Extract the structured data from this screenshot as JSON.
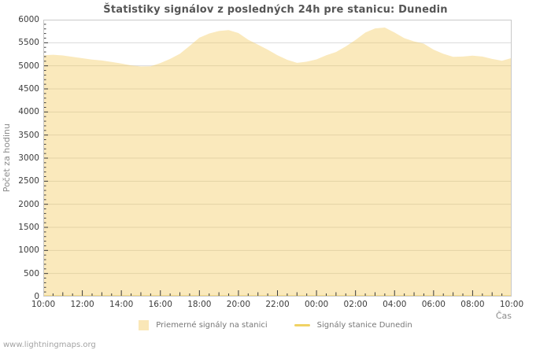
{
  "page": {
    "watermark": "www.lightningmaps.org"
  },
  "chart_data": {
    "type": "area",
    "title": "Štatistiky signálov z posledných 24h pre stanicu: Dunedin",
    "xlabel": "Čas",
    "ylabel": "Počet za hodinu",
    "ylim": [
      0,
      6000
    ],
    "y_tick_step": 500,
    "y_minor_tick_step": 100,
    "grid": true,
    "legend_position": "bottom",
    "x_tick_labels": [
      "10:00",
      "12:00",
      "14:00",
      "16:00",
      "18:00",
      "20:00",
      "22:00",
      "00:00",
      "02:00",
      "04:00",
      "06:00",
      "08:00",
      "10:00"
    ],
    "x": [
      "10:00",
      "10:30",
      "11:00",
      "11:30",
      "12:00",
      "12:30",
      "13:00",
      "13:30",
      "14:00",
      "14:30",
      "15:00",
      "15:30",
      "16:00",
      "16:30",
      "17:00",
      "17:30",
      "18:00",
      "18:30",
      "19:00",
      "19:30",
      "20:00",
      "20:30",
      "21:00",
      "21:30",
      "22:00",
      "22:30",
      "23:00",
      "23:30",
      "00:00",
      "00:30",
      "01:00",
      "01:30",
      "02:00",
      "02:30",
      "03:00",
      "03:30",
      "04:00",
      "04:30",
      "05:00",
      "05:30",
      "06:00",
      "06:30",
      "07:00",
      "07:30",
      "08:00",
      "08:30",
      "09:00",
      "09:30",
      "10:00"
    ],
    "series": [
      {
        "name": "Priemerné signály na stanici",
        "kind": "area",
        "color": "#F4CA60",
        "fill_opacity": 0.42,
        "values": [
          5230,
          5240,
          5225,
          5195,
          5165,
          5135,
          5115,
          5085,
          5050,
          5010,
          4985,
          4990,
          5060,
          5150,
          5260,
          5430,
          5610,
          5700,
          5755,
          5775,
          5710,
          5565,
          5460,
          5350,
          5230,
          5130,
          5065,
          5090,
          5140,
          5230,
          5300,
          5420,
          5560,
          5720,
          5810,
          5830,
          5720,
          5600,
          5530,
          5480,
          5350,
          5260,
          5195,
          5200,
          5220,
          5200,
          5150,
          5110,
          5170
        ]
      },
      {
        "name": "Signály stanice Dunedin",
        "kind": "line",
        "color": "#F0D264",
        "line_width": 2,
        "values": [
          10,
          10,
          10,
          10,
          10,
          10,
          10,
          10,
          10,
          10,
          10,
          10,
          10,
          10,
          10,
          10,
          10,
          10,
          10,
          10,
          10,
          10,
          10,
          10,
          10,
          10,
          10,
          10,
          10,
          10,
          10,
          10,
          10,
          10,
          10,
          10,
          10,
          10,
          10,
          10,
          10,
          10,
          10,
          10,
          10,
          10,
          10,
          10,
          10
        ]
      }
    ],
    "colors": {
      "grid": "#d9d9d9",
      "border": "#c9c9c9",
      "tick": "#3a3a3a",
      "title": "#565656",
      "axis_text": "#3c3c3c",
      "muted_text": "#8b8b8b",
      "legend_text": "#777777",
      "watermark": "#a3a3a3"
    }
  }
}
